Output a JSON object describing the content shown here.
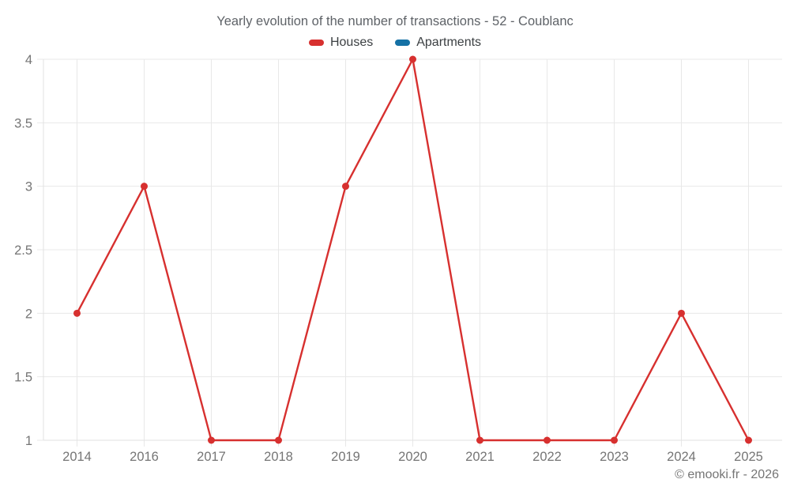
{
  "page": {
    "footer": "© emooki.fr - 2026"
  },
  "chart_data": {
    "type": "line",
    "title": "Yearly evolution of the number of transactions - 52 - Coublanc",
    "categories": [
      "2014",
      "2016",
      "2017",
      "2018",
      "2019",
      "2020",
      "2021",
      "2022",
      "2023",
      "2024",
      "2025"
    ],
    "series": [
      {
        "name": "Houses",
        "color": "#d7302f",
        "values": [
          2,
          3,
          1,
          1,
          3,
          4,
          1,
          1,
          1,
          2,
          1
        ]
      },
      {
        "name": "Apartments",
        "color": "#1571a5",
        "values": []
      }
    ],
    "xlabel": "",
    "ylabel": "",
    "ylim": [
      1,
      4
    ],
    "yticks": [
      1,
      1.5,
      2,
      2.5,
      3,
      3.5,
      4
    ],
    "grid": true,
    "legend_position": "top"
  },
  "colors": {
    "background": "#ffffff",
    "grid": "#e8e8e8",
    "axis": "#e2e2e2",
    "tick_label": "#757575",
    "title": "#5f6368",
    "legend_label": "#3c4043",
    "footer": "#757575"
  }
}
